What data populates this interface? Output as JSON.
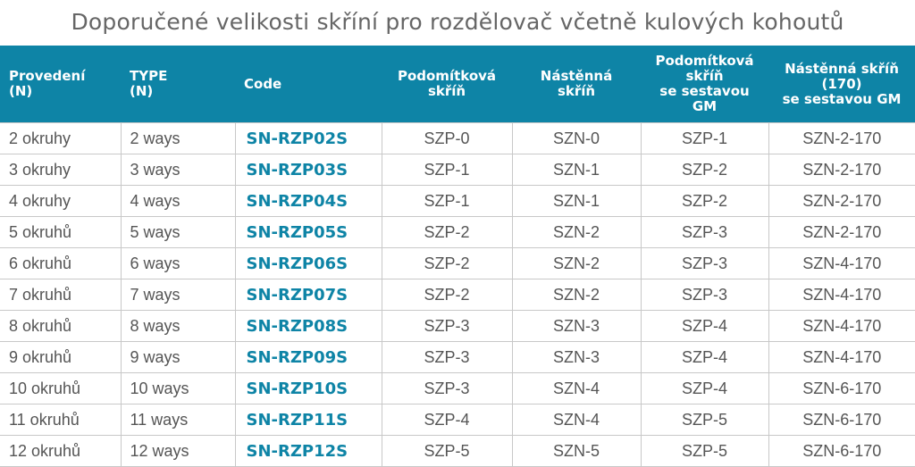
{
  "title": "Doporučené velikosti skříní pro rozdělovač včetně kulových kohoutů",
  "colors": {
    "header_bg": "#0e84a6",
    "code_text": "#0e84a6"
  },
  "headers": [
    [
      "Provedení",
      "(N)"
    ],
    [
      "TYPE",
      "(N)"
    ],
    [
      "Code"
    ],
    [
      "Podomítková",
      "skříň"
    ],
    [
      "Nástěnná",
      "skříň"
    ],
    [
      "Podomítková",
      "skříň",
      "se sestavou",
      "GM"
    ],
    [
      "Nástěnná skříň",
      "(170)",
      "se sestavou GM"
    ]
  ],
  "rows": [
    [
      "2 okruhy",
      "2 ways",
      "SN-RZP02S",
      "SZP-0",
      "SZN-0",
      "SZP-1",
      "SZN-2-170"
    ],
    [
      "3 okruhy",
      "3 ways",
      "SN-RZP03S",
      "SZP-1",
      "SZN-1",
      "SZP-2",
      "SZN-2-170"
    ],
    [
      "4 okruhy",
      "4 ways",
      "SN-RZP04S",
      "SZP-1",
      "SZN-1",
      "SZP-2",
      "SZN-2-170"
    ],
    [
      "5 okruhů",
      "5 ways",
      "SN-RZP05S",
      "SZP-2",
      "SZN-2",
      "SZP-3",
      "SZN-2-170"
    ],
    [
      "6 okruhů",
      "6 ways",
      "SN-RZP06S",
      "SZP-2",
      "SZN-2",
      "SZP-3",
      "SZN-4-170"
    ],
    [
      "7 okruhů",
      "7 ways",
      "SN-RZP07S",
      "SZP-2",
      "SZN-2",
      "SZP-3",
      "SZN-4-170"
    ],
    [
      "8 okruhů",
      "8 ways",
      "SN-RZP08S",
      "SZP-3",
      "SZN-3",
      "SZP-4",
      "SZN-4-170"
    ],
    [
      "9 okruhů",
      "9 ways",
      "SN-RZP09S",
      "SZP-3",
      "SZN-3",
      "SZP-4",
      "SZN-4-170"
    ],
    [
      "10 okruhů",
      "10 ways",
      "SN-RZP10S",
      "SZP-3",
      "SZN-4",
      "SZP-4",
      "SZN-6-170"
    ],
    [
      "11 okruhů",
      "11 ways",
      "SN-RZP11S",
      "SZP-4",
      "SZN-4",
      "SZP-5",
      "SZN-6-170"
    ],
    [
      "12 okruhů",
      "12 ways",
      "SN-RZP12S",
      "SZP-5",
      "SZN-5",
      "SZP-5",
      "SZN-6-170"
    ]
  ]
}
